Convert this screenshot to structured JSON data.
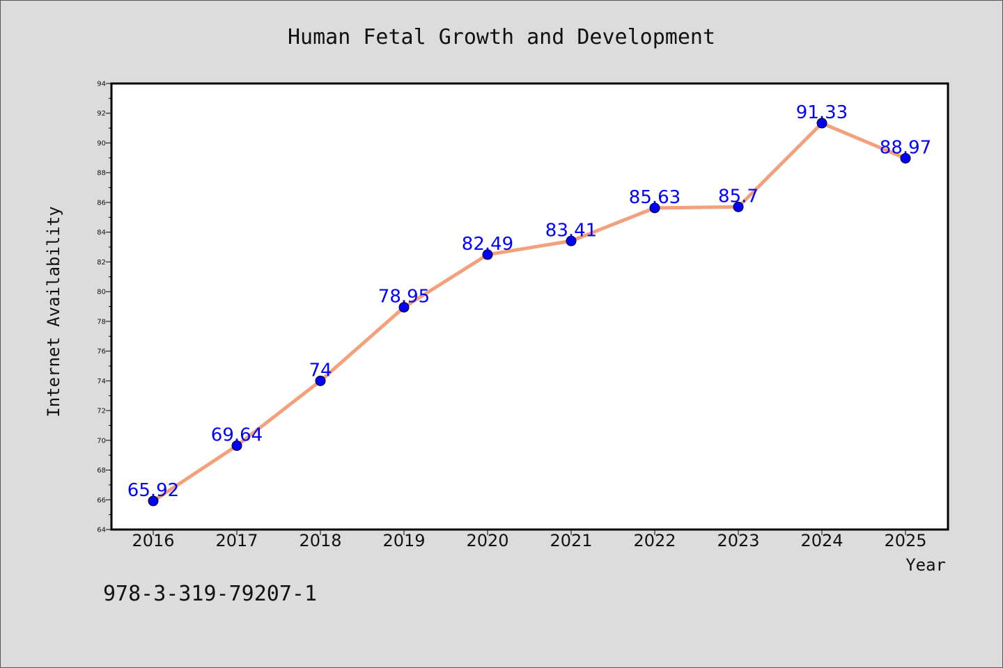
{
  "chart_data": {
    "type": "line",
    "title": "Human Fetal Growth and Development",
    "xlabel": "Year",
    "ylabel": "Internet Availability",
    "x": [
      "2016",
      "2017",
      "2018",
      "2019",
      "2020",
      "2021",
      "2022",
      "2023",
      "2024",
      "2025"
    ],
    "series": [
      {
        "values": [
          65.92,
          69.64,
          74,
          78.95,
          82.49,
          83.41,
          85.63,
          85.7,
          91.33,
          88.97
        ],
        "labels": [
          "65.92",
          "69.64",
          "74",
          "78.95",
          "82.49",
          "83.41",
          "85.63",
          "85.7",
          "91.33",
          "88.97"
        ],
        "line_color": "#f4a07c",
        "marker_color": "#0000ff"
      }
    ],
    "ylim": [
      64,
      94
    ],
    "yticks": [
      "64",
      "66",
      "68",
      "70",
      "72",
      "74",
      "76",
      "78",
      "80",
      "82",
      "84",
      "86",
      "88",
      "90",
      "92",
      "94"
    ],
    "grid": false,
    "legend": "none",
    "background": "#dcdcdc",
    "plot_background": "#ffffff"
  },
  "footer_text": "978-3-319-79207-1"
}
